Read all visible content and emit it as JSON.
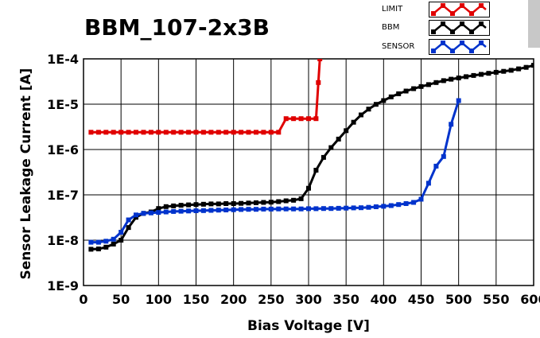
{
  "chart_data": {
    "type": "line",
    "title": "BBM_107-2x3B",
    "xlabel": "Bias Voltage [V]",
    "ylabel": "Sensor Leakage Current [A]",
    "xlim": [
      0,
      600
    ],
    "ylim": [
      1e-09,
      0.0001
    ],
    "y_scale": "log",
    "x_ticks": [
      "0",
      "50",
      "100",
      "150",
      "200",
      "250",
      "300",
      "350",
      "400",
      "450",
      "500",
      "550",
      "600"
    ],
    "y_ticks": [
      "1E-9",
      "1E-8",
      "1E-7",
      "1E-6",
      "1E-5",
      "1E-4"
    ],
    "grid": true,
    "legend_position": "top-right",
    "series": [
      {
        "name": "LIMIT",
        "color": "#e00000",
        "x": [
          10,
          20,
          30,
          40,
          50,
          60,
          70,
          80,
          90,
          100,
          110,
          120,
          130,
          140,
          150,
          160,
          170,
          180,
          190,
          200,
          210,
          220,
          230,
          240,
          250,
          260,
          270,
          280,
          290,
          300,
          310,
          313,
          315
        ],
        "y": [
          2.4e-06,
          2.4e-06,
          2.4e-06,
          2.4e-06,
          2.4e-06,
          2.4e-06,
          2.4e-06,
          2.4e-06,
          2.4e-06,
          2.4e-06,
          2.4e-06,
          2.4e-06,
          2.4e-06,
          2.4e-06,
          2.4e-06,
          2.4e-06,
          2.4e-06,
          2.4e-06,
          2.4e-06,
          2.4e-06,
          2.4e-06,
          2.4e-06,
          2.4e-06,
          2.4e-06,
          2.4e-06,
          2.4e-06,
          4.8e-06,
          4.8e-06,
          4.8e-06,
          4.8e-06,
          4.8e-06,
          3e-05,
          0.0001
        ]
      },
      {
        "name": "BBM",
        "color": "#000000",
        "x": [
          10,
          20,
          30,
          40,
          50,
          60,
          70,
          80,
          90,
          100,
          110,
          120,
          130,
          140,
          150,
          160,
          170,
          180,
          190,
          200,
          210,
          220,
          230,
          240,
          250,
          260,
          270,
          280,
          290,
          300,
          310,
          320,
          330,
          340,
          350,
          360,
          370,
          380,
          390,
          400,
          410,
          420,
          430,
          440,
          450,
          460,
          470,
          480,
          490,
          500,
          510,
          520,
          530,
          540,
          550,
          560,
          570,
          580,
          590,
          600
        ],
        "y": [
          6.3e-09,
          6.4e-09,
          7e-09,
          8.2e-09,
          1e-08,
          1.9e-08,
          3.2e-08,
          3.9e-08,
          4.2e-08,
          5e-08,
          5.5e-08,
          5.7e-08,
          5.9e-08,
          6e-08,
          6.1e-08,
          6.2e-08,
          6.3e-08,
          6.3e-08,
          6.4e-08,
          6.4e-08,
          6.5e-08,
          6.6e-08,
          6.7e-08,
          6.8e-08,
          6.9e-08,
          7.1e-08,
          7.4e-08,
          7.6e-08,
          8.2e-08,
          1.4e-07,
          3.5e-07,
          6.7e-07,
          1.1e-06,
          1.7e-06,
          2.6e-06,
          4e-06,
          5.8e-06,
          7.8e-06,
          9.9e-06,
          1.2e-05,
          1.45e-05,
          1.7e-05,
          1.95e-05,
          2.2e-05,
          2.45e-05,
          2.7e-05,
          3e-05,
          3.3e-05,
          3.55e-05,
          3.8e-05,
          4.05e-05,
          4.3e-05,
          4.55e-05,
          4.8e-05,
          5.05e-05,
          5.3e-05,
          5.6e-05,
          6e-05,
          6.5e-05,
          7.2e-05
        ]
      },
      {
        "name": "SENSOR",
        "color": "#0033cc",
        "x": [
          10,
          20,
          30,
          40,
          50,
          60,
          70,
          80,
          90,
          100,
          110,
          120,
          130,
          140,
          150,
          160,
          170,
          180,
          190,
          200,
          210,
          220,
          230,
          240,
          250,
          260,
          270,
          280,
          290,
          300,
          310,
          320,
          330,
          340,
          350,
          360,
          370,
          380,
          390,
          400,
          410,
          420,
          430,
          440,
          450,
          460,
          470,
          480,
          490,
          500
        ],
        "y": [
          9e-09,
          9e-09,
          9.5e-09,
          1.05e-08,
          1.5e-08,
          2.8e-08,
          3.6e-08,
          3.9e-08,
          4e-08,
          4.1e-08,
          4.2e-08,
          4.3e-08,
          4.35e-08,
          4.4e-08,
          4.45e-08,
          4.5e-08,
          4.55e-08,
          4.6e-08,
          4.65e-08,
          4.7e-08,
          4.75e-08,
          4.8e-08,
          4.8e-08,
          4.85e-08,
          4.85e-08,
          4.9e-08,
          4.9e-08,
          4.9e-08,
          4.9e-08,
          4.95e-08,
          4.95e-08,
          5e-08,
          5e-08,
          5.05e-08,
          5.1e-08,
          5.15e-08,
          5.2e-08,
          5.3e-08,
          5.45e-08,
          5.6e-08,
          5.8e-08,
          6.1e-08,
          6.4e-08,
          6.8e-08,
          8e-08,
          1.8e-07,
          4.3e-07,
          7e-07,
          3.6e-06,
          1.2e-05
        ]
      }
    ]
  }
}
